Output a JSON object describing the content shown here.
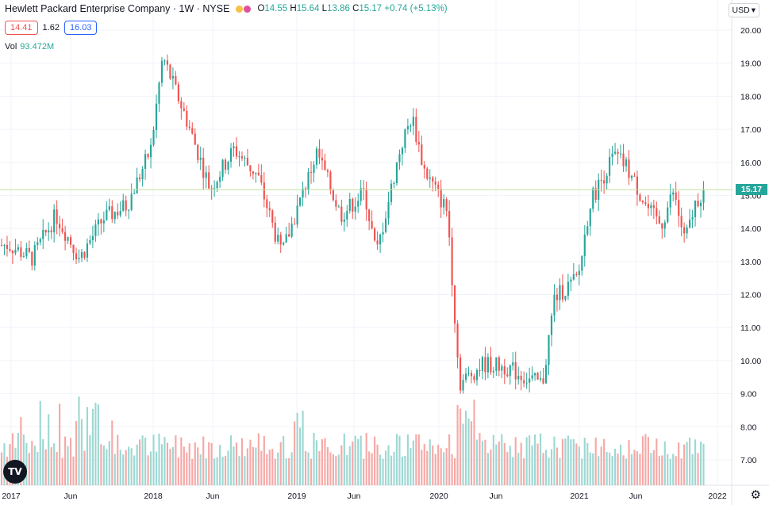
{
  "header": {
    "title": "Hewlett Packard Enterprise Company · 1W · NYSE",
    "ohlc": {
      "o_label": "O",
      "o": "14.55",
      "h_label": "H",
      "h": "15.64",
      "l_label": "L",
      "l": "13.86",
      "c_label": "C",
      "c": "15.17",
      "change": "+0.74 (+5.13%)"
    },
    "low_price": "14.41",
    "spread": "1.62",
    "high_price": "16.03",
    "volume_label": "Vol",
    "volume_value": "93.472M",
    "currency": "USD"
  },
  "last_price": "15.17",
  "colors": {
    "up": "#26a69a",
    "down": "#ef5350",
    "up_vol": "#9ed8d3",
    "down_vol": "#f6a9a7",
    "grid": "#f0f3fa",
    "price_line": "#26a69a"
  },
  "chart_data": {
    "type": "candlestick",
    "title": "Hewlett Packard Enterprise Company · 1W · NYSE",
    "x_ticks": [
      "2017",
      "Jun",
      "2018",
      "Jun",
      "2019",
      "Jun",
      "2020",
      "Jun",
      "2021",
      "Jun",
      "2022"
    ],
    "y_ticks": [
      "7.00",
      "8.00",
      "9.00",
      "10.00",
      "11.00",
      "12.00",
      "13.00",
      "14.00",
      "15.00",
      "16.00",
      "17.00",
      "18.00",
      "19.00",
      "20.00"
    ],
    "ylim": [
      6.5,
      20.4
    ],
    "grid": true,
    "series_closes": [
      {
        "date": "2017-01",
        "close": 13.5
      },
      {
        "date": "2017-03",
        "close": 13.1
      },
      {
        "date": "2017-05",
        "close": 14.4
      },
      {
        "date": "2017-07",
        "close": 13.1
      },
      {
        "date": "2017-09",
        "close": 14.3
      },
      {
        "date": "2017-11",
        "close": 14.7
      },
      {
        "date": "2018-01",
        "close": 16.4
      },
      {
        "date": "2018-02",
        "close": 19.2
      },
      {
        "date": "2018-04",
        "close": 17.3
      },
      {
        "date": "2018-06",
        "close": 15.2
      },
      {
        "date": "2018-08",
        "close": 16.4
      },
      {
        "date": "2018-10",
        "close": 15.6
      },
      {
        "date": "2018-12",
        "close": 13.2
      },
      {
        "date": "2019-03",
        "close": 16.3
      },
      {
        "date": "2019-05",
        "close": 14.4
      },
      {
        "date": "2019-07",
        "close": 15.1
      },
      {
        "date": "2019-08",
        "close": 13.2
      },
      {
        "date": "2019-10",
        "close": 16.4
      },
      {
        "date": "2019-11",
        "close": 17.4
      },
      {
        "date": "2019-12",
        "close": 15.8
      },
      {
        "date": "2020-02",
        "close": 14.5
      },
      {
        "date": "2020-03",
        "close": 9.3
      },
      {
        "date": "2020-05",
        "close": 9.9
      },
      {
        "date": "2020-07",
        "close": 9.8
      },
      {
        "date": "2020-09",
        "close": 9.4
      },
      {
        "date": "2020-10",
        "close": 9.3
      },
      {
        "date": "2020-11",
        "close": 11.9
      },
      {
        "date": "2021-01",
        "close": 12.5
      },
      {
        "date": "2021-02",
        "close": 14.8
      },
      {
        "date": "2021-04",
        "close": 16.2
      },
      {
        "date": "2021-05",
        "close": 15.9
      },
      {
        "date": "2021-07",
        "close": 14.5
      },
      {
        "date": "2021-08",
        "close": 14.1
      },
      {
        "date": "2021-09",
        "close": 15.1
      },
      {
        "date": "2021-10",
        "close": 13.6
      },
      {
        "date": "2021-11",
        "close": 14.9
      },
      {
        "date": "2021-12",
        "close": 15.17
      }
    ],
    "volume_last": "93.472M"
  }
}
